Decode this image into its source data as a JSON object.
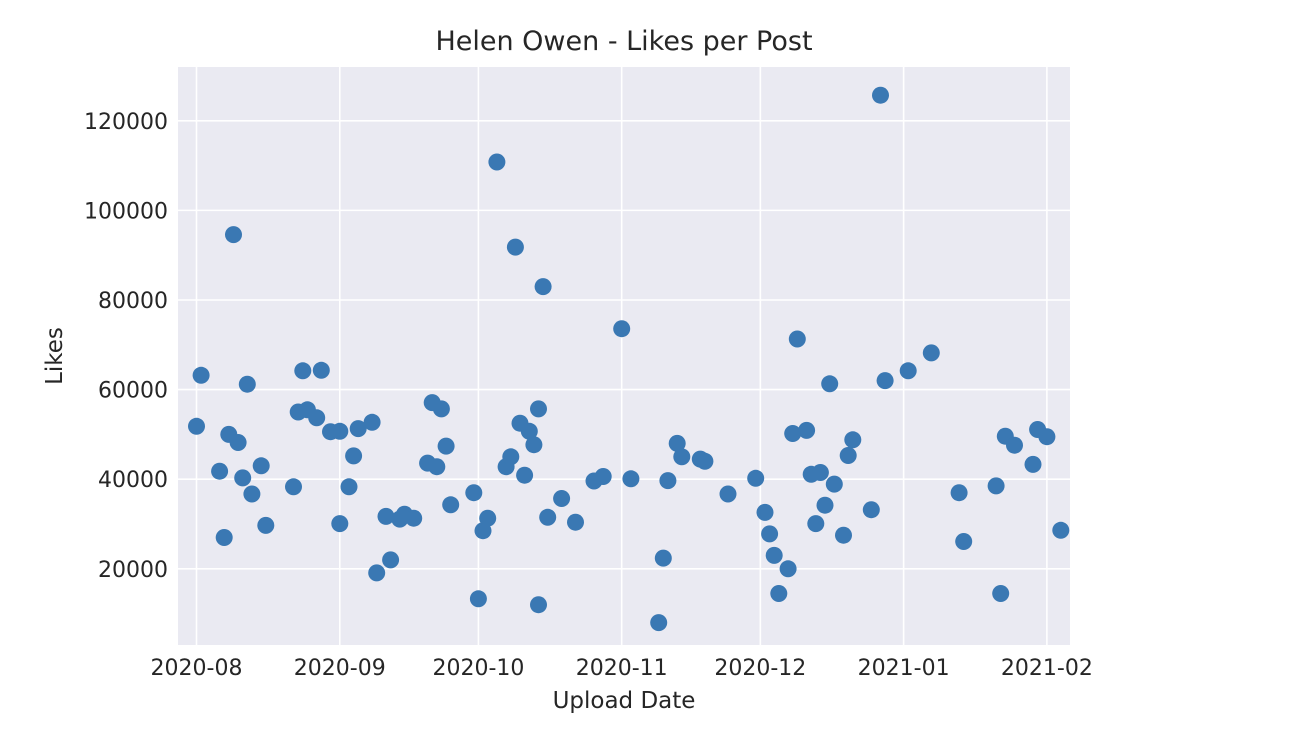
{
  "chart_data": {
    "type": "scatter",
    "title": "Helen Owen - Likes per Post",
    "xlabel": "Upload Date",
    "ylabel": "Likes",
    "x_type": "date",
    "xlim": [
      "2020-07-28",
      "2021-02-06"
    ],
    "ylim": [
      3000,
      132000
    ],
    "x_ticks": [
      "2020-08-01",
      "2020-09-01",
      "2020-10-01",
      "2020-11-01",
      "2020-12-01",
      "2021-01-01",
      "2021-02-01"
    ],
    "x_tick_labels": [
      "2020-08",
      "2020-09",
      "2020-10",
      "2020-11",
      "2020-12",
      "2021-01",
      "2021-02"
    ],
    "y_ticks": [
      20000,
      40000,
      60000,
      80000,
      100000,
      120000
    ],
    "y_tick_labels": [
      "20000",
      "40000",
      "60000",
      "80000",
      "100000",
      "120000"
    ],
    "grid": true,
    "marker_color": "#3a78b3",
    "background_color": "#eaeaf2",
    "series": [
      {
        "points": [
          [
            "2020-08-01",
            51800
          ],
          [
            "2020-08-02",
            63200
          ],
          [
            "2020-08-06",
            41800
          ],
          [
            "2020-08-07",
            27000
          ],
          [
            "2020-08-08",
            50000
          ],
          [
            "2020-08-09",
            94600
          ],
          [
            "2020-08-10",
            48200
          ],
          [
            "2020-08-11",
            40300
          ],
          [
            "2020-08-12",
            61200
          ],
          [
            "2020-08-13",
            36700
          ],
          [
            "2020-08-15",
            43000
          ],
          [
            "2020-08-16",
            29700
          ],
          [
            "2020-08-22",
            38300
          ],
          [
            "2020-08-23",
            55000
          ],
          [
            "2020-08-24",
            64200
          ],
          [
            "2020-08-25",
            55500
          ],
          [
            "2020-08-27",
            53700
          ],
          [
            "2020-08-28",
            64300
          ],
          [
            "2020-08-30",
            50600
          ],
          [
            "2020-09-01",
            50700
          ],
          [
            "2020-09-01",
            30100
          ],
          [
            "2020-09-03",
            38300
          ],
          [
            "2020-09-04",
            45200
          ],
          [
            "2020-09-05",
            51300
          ],
          [
            "2020-09-08",
            52700
          ],
          [
            "2020-09-09",
            19100
          ],
          [
            "2020-09-11",
            31700
          ],
          [
            "2020-09-12",
            22000
          ],
          [
            "2020-09-14",
            31100
          ],
          [
            "2020-09-15",
            32200
          ],
          [
            "2020-09-17",
            31300
          ],
          [
            "2020-09-20",
            43600
          ],
          [
            "2020-09-21",
            57100
          ],
          [
            "2020-09-22",
            42800
          ],
          [
            "2020-09-23",
            55700
          ],
          [
            "2020-09-24",
            47400
          ],
          [
            "2020-09-25",
            34300
          ],
          [
            "2020-09-30",
            37000
          ],
          [
            "2020-10-01",
            13300
          ],
          [
            "2020-10-02",
            28500
          ],
          [
            "2020-10-03",
            31300
          ],
          [
            "2020-10-05",
            110800
          ],
          [
            "2020-10-07",
            42800
          ],
          [
            "2020-10-08",
            45000
          ],
          [
            "2020-10-09",
            91800
          ],
          [
            "2020-10-10",
            52500
          ],
          [
            "2020-10-11",
            40900
          ],
          [
            "2020-10-12",
            50700
          ],
          [
            "2020-10-13",
            47700
          ],
          [
            "2020-10-14",
            55700
          ],
          [
            "2020-10-14",
            12000
          ],
          [
            "2020-10-15",
            83000
          ],
          [
            "2020-10-16",
            31500
          ],
          [
            "2020-10-19",
            35700
          ],
          [
            "2020-10-22",
            30400
          ],
          [
            "2020-10-26",
            39600
          ],
          [
            "2020-10-28",
            40600
          ],
          [
            "2020-11-01",
            73600
          ],
          [
            "2020-11-03",
            40100
          ],
          [
            "2020-11-09",
            8000
          ],
          [
            "2020-11-10",
            22400
          ],
          [
            "2020-11-11",
            39700
          ],
          [
            "2020-11-13",
            48000
          ],
          [
            "2020-11-14",
            45000
          ],
          [
            "2020-11-18",
            44500
          ],
          [
            "2020-11-19",
            44000
          ],
          [
            "2020-11-24",
            36700
          ],
          [
            "2020-11-30",
            40200
          ],
          [
            "2020-12-02",
            32600
          ],
          [
            "2020-12-03",
            27800
          ],
          [
            "2020-12-04",
            23000
          ],
          [
            "2020-12-05",
            14500
          ],
          [
            "2020-12-07",
            20000
          ],
          [
            "2020-12-08",
            50200
          ],
          [
            "2020-12-09",
            71300
          ],
          [
            "2020-12-11",
            50900
          ],
          [
            "2020-12-12",
            41100
          ],
          [
            "2020-12-13",
            30100
          ],
          [
            "2020-12-14",
            41500
          ],
          [
            "2020-12-15",
            34200
          ],
          [
            "2020-12-16",
            61300
          ],
          [
            "2020-12-17",
            38900
          ],
          [
            "2020-12-19",
            27500
          ],
          [
            "2020-12-20",
            45300
          ],
          [
            "2020-12-21",
            48800
          ],
          [
            "2020-12-25",
            33200
          ],
          [
            "2020-12-27",
            125700
          ],
          [
            "2020-12-28",
            62000
          ],
          [
            "2021-01-02",
            64200
          ],
          [
            "2021-01-07",
            68200
          ],
          [
            "2021-01-13",
            37000
          ],
          [
            "2021-01-14",
            26100
          ],
          [
            "2021-01-21",
            38500
          ],
          [
            "2021-01-22",
            14500
          ],
          [
            "2021-01-23",
            49600
          ],
          [
            "2021-01-25",
            47600
          ],
          [
            "2021-01-29",
            43300
          ],
          [
            "2021-01-30",
            51100
          ],
          [
            "2021-02-01",
            49500
          ],
          [
            "2021-02-04",
            28600
          ]
        ]
      }
    ]
  }
}
